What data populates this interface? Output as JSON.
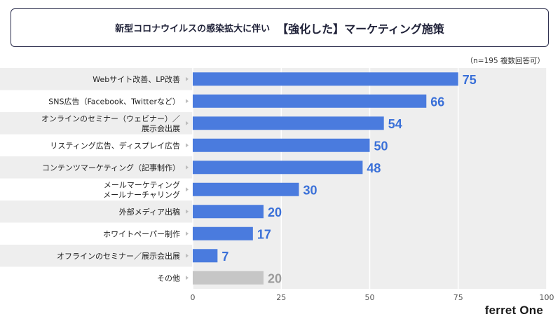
{
  "title": {
    "prefix": "新型コロナウイルスの感染拡大に伴い",
    "main": "【強化した】マーケティング施策"
  },
  "note": "（n=195 複数回答可）",
  "brand": "ferret One",
  "colors": {
    "bar": "#4a7bde",
    "bar_other": "#c6c6c6",
    "value_text": "#3a70d8",
    "value_text_other": "#9b9b9b",
    "band": "#eeeeee",
    "grid": "#ffffff"
  },
  "chart_data": {
    "type": "bar",
    "orientation": "horizontal",
    "title": "新型コロナウイルスの感染拡大に伴い 【強化した】マーケティング施策",
    "categories": [
      [
        "Webサイト改善、LP改善"
      ],
      [
        "SNS広告（Facebook、Twitterなど）"
      ],
      [
        "オンラインのセミナー（ウェビナー）／",
        "展示会出展"
      ],
      [
        "リスティング広告、ディスプレイ広告"
      ],
      [
        "コンテンツマーケティング（記事制作）"
      ],
      [
        "メールマーケティング",
        "メールナーチャリング"
      ],
      [
        "外部メディア出稿"
      ],
      [
        "ホワイトペーパー制作"
      ],
      [
        "オフラインのセミナー／展示会出展"
      ],
      [
        "その他"
      ]
    ],
    "values": [
      75,
      66,
      54,
      50,
      48,
      30,
      20,
      17,
      7,
      20
    ],
    "highlight": [
      false,
      false,
      false,
      false,
      false,
      false,
      false,
      false,
      false,
      true
    ],
    "xlim": [
      0,
      100
    ],
    "xticks": [
      0,
      25,
      50,
      75,
      100
    ],
    "xlabel": "",
    "ylabel": "",
    "grid": true
  }
}
